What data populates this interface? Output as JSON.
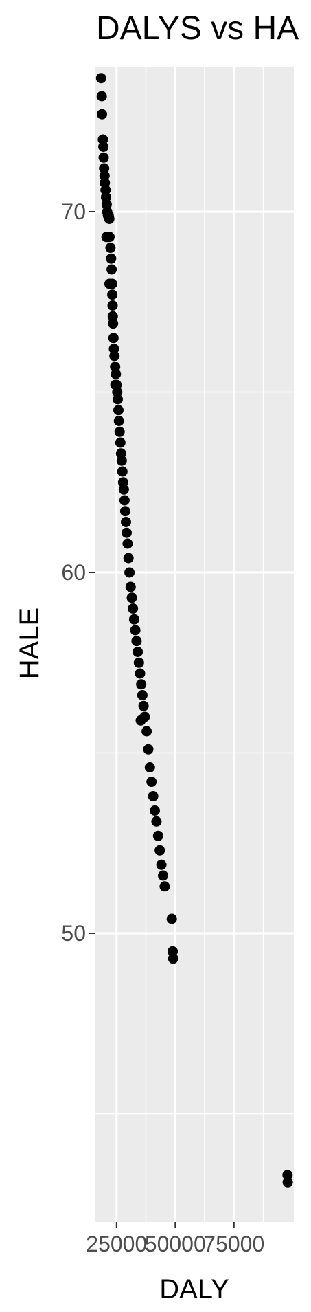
{
  "chart_data": {
    "type": "scatter",
    "title": "DALYS vs HA",
    "xlabel": "DALY",
    "ylabel": "HALE",
    "xlim": [
      16000,
      100500
    ],
    "ylim": [
      42.0,
      74.0
    ],
    "x_ticks": [
      25000,
      50000,
      75000
    ],
    "x_tick_labels": [
      "25000",
      "50000",
      "75000"
    ],
    "y_ticks": [
      50,
      60,
      70
    ],
    "y_tick_labels": [
      "50",
      "60",
      "70"
    ],
    "grid": true,
    "panel_background": "#ebebeb",
    "point_color": "#000000",
    "points": [
      [
        18440,
        73.7
      ],
      [
        18700,
        73.2
      ],
      [
        18800,
        72.7
      ],
      [
        19200,
        72.0
      ],
      [
        19400,
        71.8
      ],
      [
        19500,
        71.5
      ],
      [
        19700,
        71.2
      ],
      [
        19900,
        71.0
      ],
      [
        20000,
        70.8
      ],
      [
        20300,
        70.6
      ],
      [
        20500,
        70.4
      ],
      [
        20800,
        70.2
      ],
      [
        21000,
        70.0
      ],
      [
        21300,
        69.9
      ],
      [
        21600,
        69.9
      ],
      [
        21900,
        69.8
      ],
      [
        20700,
        69.3
      ],
      [
        22000,
        69.3
      ],
      [
        22400,
        69.0
      ],
      [
        22700,
        68.7
      ],
      [
        22900,
        68.4
      ],
      [
        22000,
        68.0
      ],
      [
        23100,
        68.0
      ],
      [
        23200,
        67.7
      ],
      [
        23300,
        67.4
      ],
      [
        23400,
        67.1
      ],
      [
        23500,
        66.9
      ],
      [
        23700,
        66.5
      ],
      [
        23900,
        66.2
      ],
      [
        24100,
        66.0
      ],
      [
        24400,
        65.7
      ],
      [
        24700,
        65.5
      ],
      [
        25000,
        65.2
      ],
      [
        24500,
        65.2
      ],
      [
        25300,
        65.0
      ],
      [
        25500,
        64.8
      ],
      [
        25800,
        64.5
      ],
      [
        26000,
        64.2
      ],
      [
        26300,
        63.9
      ],
      [
        26600,
        63.6
      ],
      [
        26900,
        63.3
      ],
      [
        27200,
        63.1
      ],
      [
        27500,
        62.8
      ],
      [
        27800,
        62.5
      ],
      [
        28100,
        62.3
      ],
      [
        28400,
        62.0
      ],
      [
        28700,
        61.7
      ],
      [
        29000,
        61.4
      ],
      [
        29300,
        61.1
      ],
      [
        29700,
        60.8
      ],
      [
        30100,
        60.4
      ],
      [
        30500,
        60.0
      ],
      [
        31000,
        59.6
      ],
      [
        31500,
        59.3
      ],
      [
        32000,
        59.0
      ],
      [
        32500,
        58.7
      ],
      [
        33000,
        58.4
      ],
      [
        33500,
        58.1
      ],
      [
        34000,
        57.8
      ],
      [
        34500,
        57.5
      ],
      [
        35000,
        57.2
      ],
      [
        35500,
        56.9
      ],
      [
        36000,
        56.6
      ],
      [
        36500,
        56.3
      ],
      [
        37000,
        56.0
      ],
      [
        35300,
        55.9
      ],
      [
        37800,
        55.6
      ],
      [
        38500,
        55.1
      ],
      [
        39200,
        54.6
      ],
      [
        39900,
        54.2
      ],
      [
        40600,
        53.8
      ],
      [
        41300,
        53.4
      ],
      [
        42000,
        53.1
      ],
      [
        42700,
        52.7
      ],
      [
        43400,
        52.3
      ],
      [
        44100,
        51.9
      ],
      [
        44800,
        51.6
      ],
      [
        45500,
        51.3
      ],
      [
        48500,
        50.4
      ],
      [
        48900,
        49.5
      ],
      [
        49100,
        49.3
      ],
      [
        97800,
        43.3
      ],
      [
        97900,
        43.1
      ]
    ]
  }
}
